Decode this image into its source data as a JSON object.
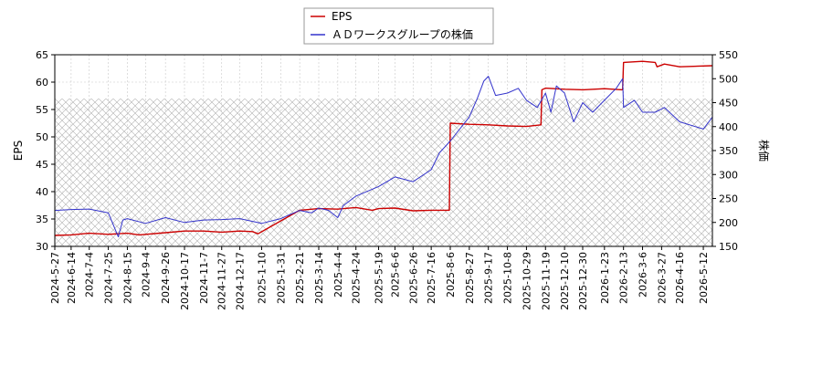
{
  "chart_data": {
    "type": "line",
    "xlabel": "",
    "y_left_label": "EPS",
    "y_right_label": "株価",
    "y_left_lim": [
      30,
      65
    ],
    "y_left_ticks": [
      30,
      35,
      40,
      45,
      50,
      55,
      60,
      65
    ],
    "y_right_lim": [
      150,
      550
    ],
    "y_right_ticks": [
      150,
      200,
      250,
      300,
      350,
      400,
      450,
      500,
      550
    ],
    "x_lim": [
      "2024-05-27",
      "2026-05-22"
    ],
    "x_ticks": [
      "2024-5-27",
      "2024-6-14",
      "2024-7-4",
      "2024-7-25",
      "2024-8-15",
      "2024-9-4",
      "2024-9-26",
      "2024-10-17",
      "2024-11-7",
      "2024-11-27",
      "2024-12-17",
      "2025-1-10",
      "2025-1-31",
      "2025-2-21",
      "2025-3-14",
      "2025-4-4",
      "2025-4-24",
      "2025-5-19",
      "2025-6-6",
      "2025-6-26",
      "2025-7-16",
      "2025-8-6",
      "2025-8-27",
      "2025-9-17",
      "2025-10-8",
      "2025-10-29",
      "2025-11-19",
      "2025-12-10",
      "2025-12-30",
      "2026-1-23",
      "2026-2-13",
      "2026-3-6",
      "2026-3-27",
      "2026-4-16",
      "2026-5-12"
    ],
    "grid": true,
    "legend_position": "top-center",
    "hatch_region": {
      "y_max": 57
    },
    "series": [
      {
        "name": "EPS",
        "axis": "left",
        "color": "#cc0000",
        "points": [
          [
            "2024-05-27",
            32.0
          ],
          [
            "2024-06-14",
            32.1
          ],
          [
            "2024-07-04",
            32.4
          ],
          [
            "2024-07-25",
            32.2
          ],
          [
            "2024-08-15",
            32.4
          ],
          [
            "2024-08-28",
            32.1
          ],
          [
            "2024-09-26",
            32.5
          ],
          [
            "2024-10-17",
            32.8
          ],
          [
            "2024-11-07",
            32.8
          ],
          [
            "2024-11-27",
            32.6
          ],
          [
            "2024-12-17",
            32.8
          ],
          [
            "2024-12-31",
            32.7
          ],
          [
            "2025-01-06",
            32.3
          ],
          [
            "2025-02-21",
            36.6
          ],
          [
            "2025-03-14",
            36.9
          ],
          [
            "2025-04-04",
            36.8
          ],
          [
            "2025-04-24",
            37.1
          ],
          [
            "2025-05-12",
            36.6
          ],
          [
            "2025-05-19",
            36.9
          ],
          [
            "2025-06-06",
            37.0
          ],
          [
            "2025-06-26",
            36.5
          ],
          [
            "2025-07-16",
            36.6
          ],
          [
            "2025-08-05",
            36.6
          ],
          [
            "2025-08-06",
            52.5
          ],
          [
            "2025-08-27",
            52.3
          ],
          [
            "2025-09-17",
            52.2
          ],
          [
            "2025-10-08",
            52.0
          ],
          [
            "2025-10-29",
            51.9
          ],
          [
            "2025-11-14",
            52.2
          ],
          [
            "2025-11-15",
            58.6
          ],
          [
            "2025-11-19",
            58.9
          ],
          [
            "2025-12-10",
            58.7
          ],
          [
            "2025-12-30",
            58.6
          ],
          [
            "2026-01-23",
            58.8
          ],
          [
            "2026-02-12",
            58.6
          ],
          [
            "2026-02-13",
            63.6
          ],
          [
            "2026-03-06",
            63.8
          ],
          [
            "2026-03-20",
            63.6
          ],
          [
            "2026-03-22",
            62.8
          ],
          [
            "2026-03-30",
            63.3
          ],
          [
            "2026-04-16",
            62.8
          ],
          [
            "2026-05-22",
            63.0
          ]
        ]
      },
      {
        "name": "ＡＤワークスグループの株価",
        "axis": "right",
        "color": "#3333cc",
        "points": [
          [
            "2024-05-27",
            225
          ],
          [
            "2024-06-14",
            227
          ],
          [
            "2024-07-04",
            228
          ],
          [
            "2024-07-25",
            220
          ],
          [
            "2024-08-05",
            170
          ],
          [
            "2024-08-10",
            205
          ],
          [
            "2024-08-15",
            208
          ],
          [
            "2024-09-04",
            198
          ],
          [
            "2024-09-26",
            210
          ],
          [
            "2024-10-17",
            200
          ],
          [
            "2024-11-07",
            205
          ],
          [
            "2024-11-27",
            206
          ],
          [
            "2024-12-17",
            208
          ],
          [
            "2025-01-10",
            198
          ],
          [
            "2025-01-31",
            208
          ],
          [
            "2025-02-21",
            225
          ],
          [
            "2025-03-06",
            220
          ],
          [
            "2025-03-14",
            230
          ],
          [
            "2025-03-25",
            225
          ],
          [
            "2025-04-04",
            210
          ],
          [
            "2025-04-10",
            235
          ],
          [
            "2025-04-24",
            255
          ],
          [
            "2025-05-19",
            275
          ],
          [
            "2025-06-06",
            295
          ],
          [
            "2025-06-26",
            285
          ],
          [
            "2025-07-16",
            310
          ],
          [
            "2025-07-25",
            345
          ],
          [
            "2025-08-06",
            370
          ],
          [
            "2025-08-27",
            420
          ],
          [
            "2025-09-05",
            460
          ],
          [
            "2025-09-12",
            495
          ],
          [
            "2025-09-17",
            505
          ],
          [
            "2025-09-25",
            465
          ],
          [
            "2025-10-08",
            470
          ],
          [
            "2025-10-20",
            480
          ],
          [
            "2025-10-29",
            455
          ],
          [
            "2025-11-10",
            440
          ],
          [
            "2025-11-19",
            470
          ],
          [
            "2025-11-25",
            430
          ],
          [
            "2025-12-01",
            485
          ],
          [
            "2025-12-10",
            470
          ],
          [
            "2025-12-20",
            410
          ],
          [
            "2025-12-30",
            450
          ],
          [
            "2026-01-10",
            430
          ],
          [
            "2026-01-23",
            455
          ],
          [
            "2026-02-05",
            480
          ],
          [
            "2026-02-12",
            500
          ],
          [
            "2026-02-13",
            440
          ],
          [
            "2026-02-25",
            455
          ],
          [
            "2026-03-06",
            430
          ],
          [
            "2026-03-20",
            430
          ],
          [
            "2026-03-30",
            440
          ],
          [
            "2026-04-16",
            410
          ],
          [
            "2026-05-12",
            395
          ],
          [
            "2026-05-22",
            420
          ]
        ]
      }
    ]
  }
}
